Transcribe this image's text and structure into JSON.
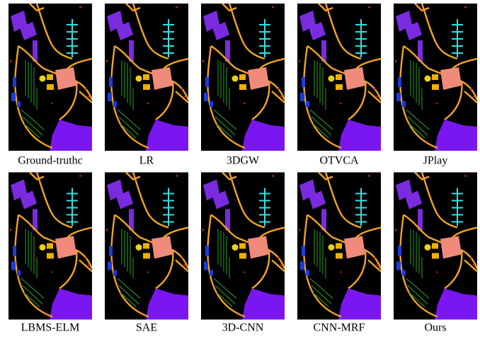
{
  "panels": [
    {
      "caption": "Ground-truthc"
    },
    {
      "caption": "LR"
    },
    {
      "caption": "3DGW"
    },
    {
      "caption": "OTVCA"
    },
    {
      "caption": "JPlay"
    },
    {
      "caption": "LBMS-ELM"
    },
    {
      "caption": "SAE"
    },
    {
      "caption": "3D-CNN"
    },
    {
      "caption": "CNN-MRF"
    },
    {
      "caption": "Ours"
    }
  ]
}
